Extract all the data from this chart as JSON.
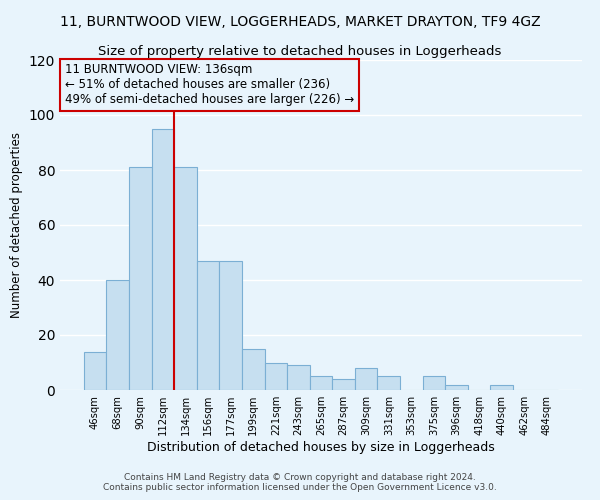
{
  "title": "11, BURNTWOOD VIEW, LOGGERHEADS, MARKET DRAYTON, TF9 4GZ",
  "subtitle": "Size of property relative to detached houses in Loggerheads",
  "xlabel": "Distribution of detached houses by size in Loggerheads",
  "ylabel": "Number of detached properties",
  "bar_labels": [
    "46sqm",
    "68sqm",
    "90sqm",
    "112sqm",
    "134sqm",
    "156sqm",
    "177sqm",
    "199sqm",
    "221sqm",
    "243sqm",
    "265sqm",
    "287sqm",
    "309sqm",
    "331sqm",
    "353sqm",
    "375sqm",
    "396sqm",
    "418sqm",
    "440sqm",
    "462sqm",
    "484sqm"
  ],
  "bar_values": [
    14,
    40,
    81,
    95,
    81,
    47,
    47,
    15,
    10,
    9,
    5,
    4,
    8,
    5,
    0,
    5,
    2,
    0,
    2,
    0,
    0
  ],
  "bar_color": "#c6dff0",
  "bar_edge_color": "#7bafd4",
  "vline_x": 3.5,
  "vline_color": "#cc0000",
  "annotation_lines": [
    "11 BURNTWOOD VIEW: 136sqm",
    "← 51% of detached houses are smaller (236)",
    "49% of semi-detached houses are larger (226) →"
  ],
  "ylim": [
    0,
    120
  ],
  "yticks": [
    0,
    20,
    40,
    60,
    80,
    100,
    120
  ],
  "footer_line1": "Contains HM Land Registry data © Crown copyright and database right 2024.",
  "footer_line2": "Contains public sector information licensed under the Open Government Licence v3.0.",
  "background_color": "#e8f4fc",
  "title_fontsize": 10,
  "subtitle_fontsize": 9.5,
  "xlabel_fontsize": 9,
  "ylabel_fontsize": 8.5,
  "annotation_fontsize": 8.5,
  "footer_fontsize": 6.5
}
